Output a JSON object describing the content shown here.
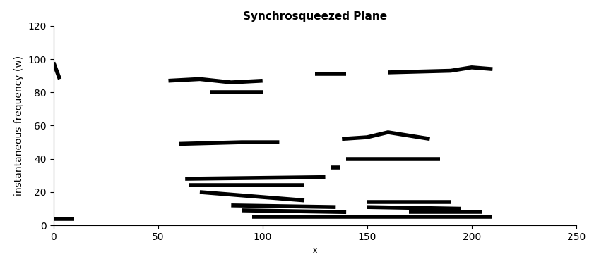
{
  "chart_data": {
    "type": "line",
    "title": "Synchrosqueezed Plane",
    "x_label": "x",
    "y_label": "instantaneous frequency (w)",
    "color": "#000000",
    "xlim": [
      0,
      250
    ],
    "ylim": [
      0,
      120
    ],
    "xticks": [
      0,
      50,
      100,
      150,
      200,
      250
    ],
    "yticks": [
      0,
      20,
      40,
      60,
      80,
      100,
      120
    ],
    "grid": false,
    "series": [
      {
        "x": [
          0,
          10
        ],
        "values": [
          4,
          4
        ]
      },
      {
        "x": [
          0,
          3
        ],
        "values": [
          98,
          88
        ]
      },
      {
        "x": [
          55,
          70,
          85,
          100
        ],
        "values": [
          87,
          88,
          86,
          87
        ]
      },
      {
        "x": [
          75,
          100
        ],
        "values": [
          80,
          80
        ]
      },
      {
        "x": [
          60,
          90,
          108
        ],
        "values": [
          49,
          50,
          50
        ]
      },
      {
        "x": [
          125,
          140
        ],
        "values": [
          91,
          91
        ]
      },
      {
        "x": [
          160,
          190,
          200,
          210
        ],
        "values": [
          92,
          93,
          95,
          94
        ]
      },
      {
        "x": [
          138,
          150,
          160,
          170,
          180
        ],
        "values": [
          52,
          53,
          56,
          54,
          52
        ]
      },
      {
        "x": [
          140,
          185
        ],
        "values": [
          40,
          40
        ]
      },
      {
        "x": [
          133,
          137
        ],
        "values": [
          35,
          35
        ]
      },
      {
        "x": [
          63,
          130
        ],
        "values": [
          28,
          29
        ]
      },
      {
        "x": [
          65,
          120
        ],
        "values": [
          24,
          24
        ]
      },
      {
        "x": [
          70,
          120
        ],
        "values": [
          20,
          15
        ]
      },
      {
        "x": [
          85,
          135
        ],
        "values": [
          12,
          11
        ]
      },
      {
        "x": [
          90,
          140
        ],
        "values": [
          9,
          8
        ]
      },
      {
        "x": [
          95,
          210
        ],
        "values": [
          5,
          5
        ]
      },
      {
        "x": [
          150,
          190
        ],
        "values": [
          14,
          14
        ]
      },
      {
        "x": [
          150,
          195
        ],
        "values": [
          11,
          10
        ]
      },
      {
        "x": [
          170,
          205
        ],
        "values": [
          8,
          8
        ]
      }
    ]
  }
}
